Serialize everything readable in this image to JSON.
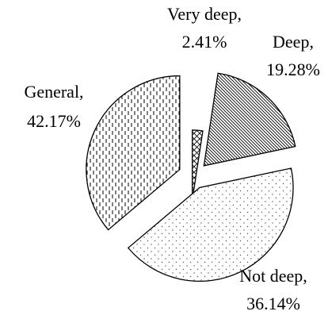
{
  "chart_data": {
    "type": "pie",
    "categories": [
      "Very deep,",
      "Deep,",
      "General,",
      "Not deep,"
    ],
    "values": [
      2.41,
      19.28,
      42.17,
      36.14
    ],
    "value_labels": [
      "2.41%",
      "19.28%",
      "42.17%",
      "36.14%"
    ],
    "patterns": [
      "crosshatch",
      "diagonal",
      "dots",
      "dashes"
    ],
    "exploded": true
  }
}
